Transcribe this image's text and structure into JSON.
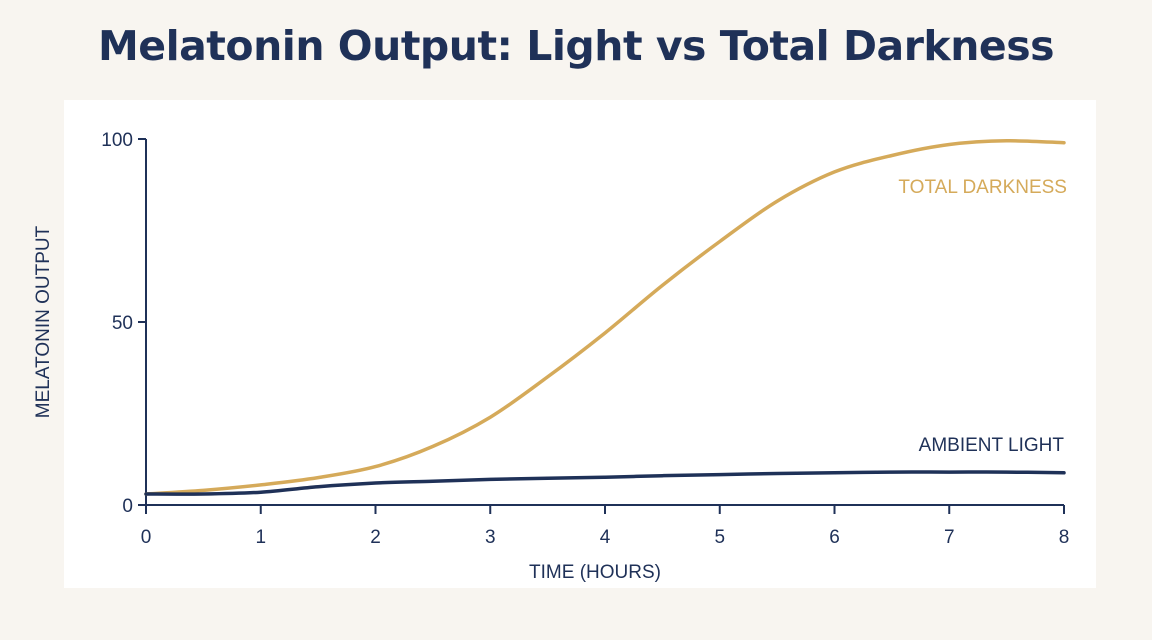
{
  "chart_data": {
    "type": "line",
    "title": "Melatonin Output: Light vs Total Darkness",
    "xlabel": "TIME (HOURS)",
    "ylabel": "MELATONIN OUTPUT",
    "xlim": [
      0,
      8
    ],
    "ylim": [
      0,
      100
    ],
    "x_ticks": [
      "0",
      "1",
      "2",
      "3",
      "4",
      "5",
      "6",
      "7",
      "8"
    ],
    "y_ticks": [
      "0",
      "50",
      "100"
    ],
    "grid": false,
    "series": [
      {
        "name": "TOTAL DARKNESS",
        "color": "#d5aa5a",
        "x": [
          0,
          0.5,
          1,
          1.5,
          2,
          2.5,
          3,
          3.5,
          4,
          4.5,
          5,
          5.5,
          6,
          6.5,
          7,
          7.5,
          8
        ],
        "y": [
          3,
          4,
          5.5,
          7.5,
          10.5,
          16,
          24,
          35,
          47,
          60,
          72,
          83,
          91,
          95.5,
          98.5,
          99.5,
          99
        ]
      },
      {
        "name": "AMBIENT LIGHT",
        "color": "#1f3158",
        "x": [
          0,
          0.5,
          1,
          1.5,
          2,
          2.5,
          3,
          3.5,
          4,
          4.5,
          5,
          5.5,
          6,
          6.5,
          7,
          7.5,
          8
        ],
        "y": [
          3,
          3,
          3.5,
          5,
          6,
          6.5,
          7,
          7.3,
          7.6,
          8,
          8.3,
          8.6,
          8.8,
          9,
          9,
          9,
          8.8
        ]
      }
    ]
  }
}
